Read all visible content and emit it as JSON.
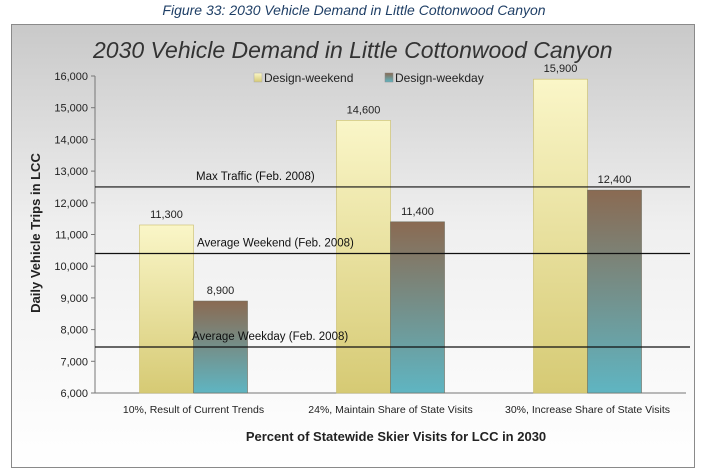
{
  "figure_caption": "Figure 33: 2030 Vehicle Demand in Little Cottonwood Canyon",
  "chart_data": {
    "type": "bar",
    "title": "2030 Vehicle Demand in Little Cottonwood Canyon",
    "xlabel": "Percent of Statewide Skier Visits for LCC in 2030",
    "ylabel": "Daily Vehicle Trips in LCC",
    "ylim": [
      6000,
      16000
    ],
    "yticks": [
      6000,
      7000,
      8000,
      9000,
      10000,
      11000,
      12000,
      13000,
      14000,
      15000,
      16000
    ],
    "ytick_labels": [
      "6,000",
      "7,000",
      "8,000",
      "9,000",
      "10,000",
      "11,000",
      "12,000",
      "13,000",
      "14,000",
      "15,000",
      "16,000"
    ],
    "categories": [
      "10%, Result of Current Trends",
      "24%, Maintain Share of State Visits",
      "30%, Increase Share of State Visits"
    ],
    "series": [
      {
        "name": "Design-weekend",
        "values": [
          11300,
          14600,
          15900
        ],
        "labels": [
          "11,300",
          "14,600",
          "15,900"
        ],
        "color_top": "#faf6c8",
        "color_bottom": "#d8cc78"
      },
      {
        "name": "Design-weekday",
        "values": [
          8900,
          11400,
          12400
        ],
        "labels": [
          "8,900",
          "11,400",
          "12,400"
        ],
        "color_top": "#8a6a52",
        "color_bottom": "#5fb3bf"
      }
    ],
    "reference_lines": [
      {
        "label": "Max Traffic (Feb. 2008)",
        "value": 12500
      },
      {
        "label": "Average Weekend (Feb. 2008)",
        "value": 10400
      },
      {
        "label": "Average Weekday (Feb. 2008)",
        "value": 7450
      }
    ],
    "legend_position": "top-center",
    "grid": false
  }
}
